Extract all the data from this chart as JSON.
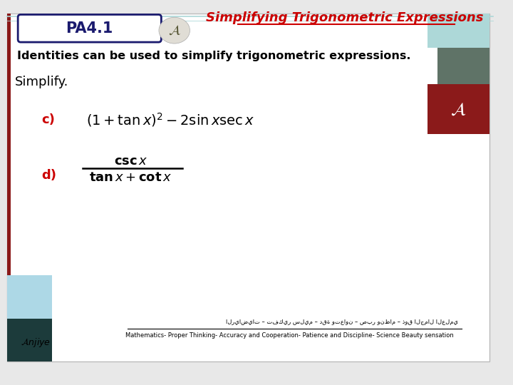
{
  "title": "Simplifying Trigonometric Expressions",
  "title_color": "#CC0000",
  "pa_label": "PA4.1",
  "body_text": "Identities can be used to simplify trigonometric expressions.",
  "simplify_text": "Simplify.",
  "item_c_label": "c)",
  "item_d_label": "d)",
  "footer_arabic": "الرياضيات – تفكير سليم – دقة وتعاون – صبر ونظام – ذوق الجمال العلمي",
  "footer_english": "Mathematics- Proper Thinking- Accuracy and Cooperation- Patience and Discipline- Science Beauty sensation",
  "left_border_color": "#8B1A1A",
  "red_color": "#CC0000",
  "slide_bg": "#FFFFFF",
  "outer_bg": "#E8E8E8",
  "deco_top_right_1": "#ADD8D8",
  "deco_top_right_2": "#5F7367",
  "deco_top_right_3": "#8B1A1A",
  "deco_bot_left_1": "#ADD8E6",
  "deco_bot_left_2": "#1C3B3B",
  "pa_box_color": "#1A1A6E",
  "header_line_color": "#ADD8D8",
  "title_underline_color": "#CC0000"
}
